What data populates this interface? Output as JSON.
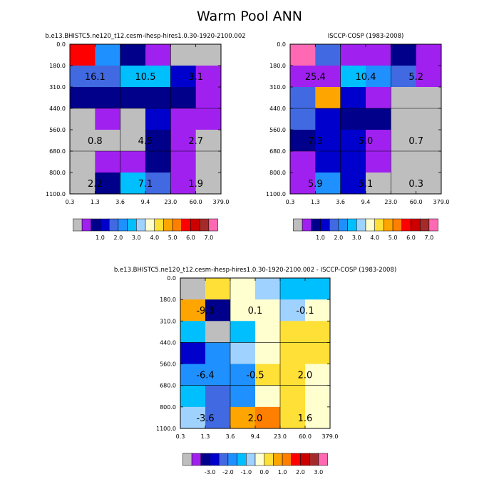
{
  "title": "Warm Pool ANN",
  "colors": {
    "abs": [
      "#bebebe",
      "#a020f0",
      "#00008b",
      "#0000cd",
      "#4169e1",
      "#1e90ff",
      "#00bfff",
      "#a0d2ff",
      "#ffffd0",
      "#ffe036",
      "#ffa500",
      "#ff7f00",
      "#ff0000",
      "#cd0000",
      "#a52a2a",
      "#ff69b4"
    ],
    "diff": [
      "#bebebe",
      "#a020f0",
      "#00008b",
      "#0000cd",
      "#4169e1",
      "#1e90ff",
      "#00bfff",
      "#a0d2ff",
      "#ffffd0",
      "#ffe036",
      "#ffa500",
      "#ff7f00",
      "#ff0000",
      "#cd0000",
      "#a52a2a",
      "#ff69b4"
    ]
  },
  "chart_data": [
    {
      "type": "heatmap",
      "title": "b.e13.BHISTC5.ne120_t12.cesm-ihesp-hires1.0.30-1920-2100.002",
      "x_ticks": [
        "0.3",
        "1.3",
        "3.6",
        "9.4",
        "23.0",
        "60.0",
        "379.0"
      ],
      "y_ticks": [
        "0.0",
        "180.0",
        "310.0",
        "440.0",
        "560.0",
        "680.0",
        "800.0",
        "1100.0"
      ],
      "cell_levels": [
        [
          12,
          5,
          2,
          1,
          0,
          0
        ],
        [
          4,
          4,
          6,
          6,
          3,
          1
        ],
        [
          2,
          2,
          2,
          2,
          2,
          1
        ],
        [
          0,
          1,
          0,
          3,
          1,
          1
        ],
        [
          0,
          0,
          0,
          2,
          1,
          0
        ],
        [
          0,
          1,
          1,
          2,
          1,
          0
        ],
        [
          0,
          2,
          6,
          4,
          1,
          0
        ]
      ],
      "annotations": [
        {
          "text": "16.1",
          "xi": 1,
          "yi": 1
        },
        {
          "text": "10.5",
          "xi": 3,
          "yi": 1
        },
        {
          "text": "3.1",
          "xi": 5,
          "yi": 1
        },
        {
          "text": "0.8",
          "xi": 1,
          "yi": 4
        },
        {
          "text": "4.5",
          "xi": 3,
          "yi": 4
        },
        {
          "text": "2.7",
          "xi": 5,
          "yi": 4
        },
        {
          "text": "2.2",
          "xi": 1,
          "yi": 6
        },
        {
          "text": "7.1",
          "xi": 3,
          "yi": 6
        },
        {
          "text": "1.9",
          "xi": 5,
          "yi": 6
        }
      ],
      "colorbar_labels": [
        "1.0",
        "2.0",
        "3.0",
        "4.0",
        "5.0",
        "6.0",
        "7.0"
      ]
    },
    {
      "type": "heatmap",
      "title": "ISCCP-COSP (1983-2008)",
      "x_ticks": [
        "0.3",
        "1.3",
        "3.6",
        "9.4",
        "23.0",
        "60.0",
        "379.0"
      ],
      "y_ticks": [
        "0.0",
        "180.0",
        "310.0",
        "440.0",
        "560.0",
        "680.0",
        "800.0",
        "1100.0"
      ],
      "cell_levels": [
        [
          15,
          4,
          1,
          1,
          2,
          1
        ],
        [
          1,
          1,
          6,
          5,
          4,
          1
        ],
        [
          4,
          10,
          3,
          1,
          0,
          0
        ],
        [
          4,
          3,
          2,
          2,
          0,
          0
        ],
        [
          2,
          3,
          3,
          1,
          0,
          0
        ],
        [
          1,
          3,
          3,
          1,
          0,
          0
        ],
        [
          1,
          5,
          3,
          0,
          0,
          0
        ]
      ],
      "annotations": [
        {
          "text": "25.4",
          "xi": 1,
          "yi": 1
        },
        {
          "text": "10.4",
          "xi": 3,
          "yi": 1
        },
        {
          "text": "5.2",
          "xi": 5,
          "yi": 1
        },
        {
          "text": "7.3",
          "xi": 1,
          "yi": 4
        },
        {
          "text": "5.0",
          "xi": 3,
          "yi": 4
        },
        {
          "text": "0.7",
          "xi": 5,
          "yi": 4
        },
        {
          "text": "5.9",
          "xi": 1,
          "yi": 6
        },
        {
          "text": "5.1",
          "xi": 3,
          "yi": 6
        },
        {
          "text": "0.3",
          "xi": 5,
          "yi": 6
        }
      ],
      "colorbar_labels": [
        "1.0",
        "2.0",
        "3.0",
        "4.0",
        "5.0",
        "6.0",
        "7.0"
      ]
    },
    {
      "type": "heatmap",
      "title": "b.e13.BHISTC5.ne120_t12.cesm-ihesp-hires1.0.30-1920-2100.002 - ISCCP-COSP (1983-2008)",
      "x_ticks": [
        "0.3",
        "1.3",
        "3.6",
        "9.4",
        "23.0",
        "60.0",
        "379.0"
      ],
      "y_ticks": [
        "0.0",
        "180.0",
        "310.0",
        "440.0",
        "560.0",
        "680.0",
        "800.0",
        "1100.0"
      ],
      "cell_levels": [
        [
          0,
          9,
          8,
          7,
          6,
          6
        ],
        [
          10,
          2,
          8,
          8,
          7,
          8
        ],
        [
          6,
          0,
          6,
          8,
          9,
          9
        ],
        [
          3,
          5,
          7,
          8,
          9,
          9
        ],
        [
          5,
          5,
          5,
          9,
          9,
          8
        ],
        [
          6,
          4,
          5,
          8,
          9,
          8
        ],
        [
          7,
          4,
          10,
          11,
          9,
          8
        ]
      ],
      "annotations": [
        {
          "text": "-9.3",
          "xi": 1,
          "yi": 1
        },
        {
          "text": "0.1",
          "xi": 3,
          "yi": 1
        },
        {
          "text": "-0.1",
          "xi": 5,
          "yi": 1
        },
        {
          "text": "-6.4",
          "xi": 1,
          "yi": 4
        },
        {
          "text": "-0.5",
          "xi": 3,
          "yi": 4
        },
        {
          "text": "2.0",
          "xi": 5,
          "yi": 4
        },
        {
          "text": "-3.6",
          "xi": 1,
          "yi": 6
        },
        {
          "text": "2.0",
          "xi": 3,
          "yi": 6
        },
        {
          "text": "1.6",
          "xi": 5,
          "yi": 6
        }
      ],
      "colorbar_labels": [
        "-3.0",
        "-2.0",
        "-1.0",
        "0.0",
        "1.0",
        "2.0",
        "3.0"
      ]
    }
  ]
}
